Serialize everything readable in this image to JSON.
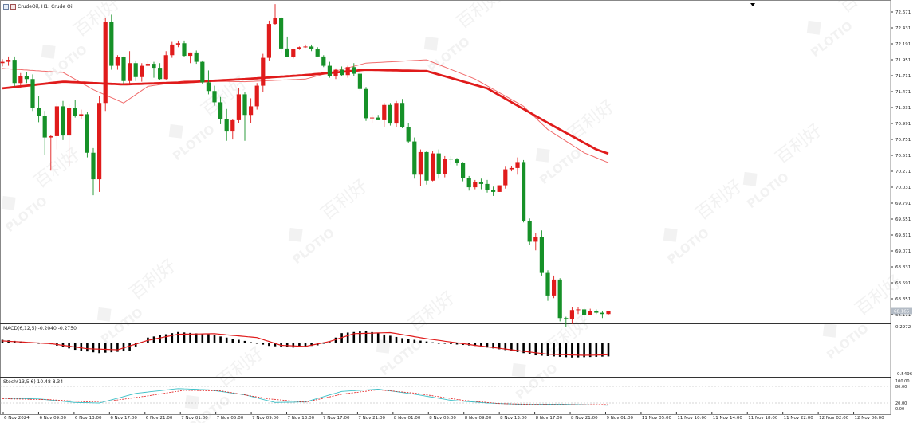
{
  "window": {
    "title": "CrudeOil, H1:  Crude Oil"
  },
  "colors": {
    "up": "#e01b1b",
    "down": "#169128",
    "ma_slow": "#e01b1b",
    "ma_fast": "#f06a6a",
    "macd_hist": "#000000",
    "macd_signal": "#e01b1b",
    "stoch_main": "#3bbfc6",
    "stoch_signal": "#e01b1b",
    "grid": "#000000"
  },
  "watermark": {
    "brand": "PLOTIO",
    "chinese": "百利好"
  },
  "chart_data": [
    {
      "type": "candlestick",
      "title": "CrudeOil, H1:  Crude Oil",
      "ylim": [
        67.991,
        72.791
      ],
      "y_ticks": [
        "72.671",
        "72.431",
        "72.191",
        "71.951",
        "71.711",
        "71.471",
        "71.231",
        "70.991",
        "70.751",
        "70.511",
        "70.271",
        "70.031",
        "69.791",
        "69.551",
        "69.311",
        "69.071",
        "68.831",
        "68.591",
        "68.351",
        "68.111"
      ],
      "current_price": "68.165",
      "x_tick_labels": [
        "6 Nov 2024",
        "6 Nov 09:00",
        "6 Nov 13:00",
        "6 Nov 17:00",
        "6 Nov 21:00",
        "7 Nov 01:00",
        "7 Nov 05:00",
        "7 Nov 09:00",
        "7 Nov 13:00",
        "7 Nov 17:00",
        "7 Nov 21:00",
        "8 Nov 01:00",
        "8 Nov 05:00",
        "8 Nov 09:00",
        "8 Nov 13:00",
        "8 Nov 17:00",
        "8 Nov 21:00",
        "9 Nov 01:00",
        "11 Nov 05:00",
        "11 Nov 10:00",
        "11 Nov 14:00",
        "11 Nov 18:00",
        "11 Nov 22:00",
        "12 Nov 02:00",
        "12 Nov 06:00"
      ],
      "candles": [
        [
          71.9,
          71.96,
          71.85,
          71.92
        ],
        [
          71.92,
          72.0,
          71.86,
          71.95
        ],
        [
          71.95,
          72.0,
          71.55,
          71.6
        ],
        [
          71.6,
          71.75,
          71.52,
          71.7
        ],
        [
          71.7,
          71.76,
          71.6,
          71.66
        ],
        [
          71.66,
          71.73,
          71.18,
          71.22
        ],
        [
          71.22,
          71.4,
          71.01,
          71.1
        ],
        [
          71.1,
          71.18,
          70.52,
          70.78
        ],
        [
          70.78,
          70.82,
          70.28,
          70.8
        ],
        [
          70.8,
          71.3,
          70.6,
          71.25
        ],
        [
          71.25,
          71.33,
          70.74,
          70.81
        ],
        [
          70.81,
          71.28,
          70.35,
          71.22
        ],
        [
          71.22,
          71.34,
          71.08,
          71.11
        ],
        [
          71.11,
          71.2,
          71.06,
          71.13
        ],
        [
          71.13,
          71.16,
          70.48,
          70.55
        ],
        [
          70.55,
          70.62,
          69.91,
          70.15
        ],
        [
          70.15,
          71.4,
          69.96,
          71.3
        ],
        [
          71.3,
          72.58,
          71.18,
          72.52
        ],
        [
          72.52,
          72.63,
          71.8,
          71.86
        ],
        [
          71.86,
          72.02,
          71.8,
          71.99
        ],
        [
          71.99,
          72.0,
          71.58,
          71.63
        ],
        [
          71.63,
          72.08,
          71.58,
          71.9
        ],
        [
          71.9,
          71.94,
          71.63,
          71.69
        ],
        [
          71.69,
          71.9,
          71.62,
          71.86
        ],
        [
          71.86,
          71.93,
          71.85,
          71.89
        ],
        [
          71.89,
          71.92,
          71.68,
          71.83
        ],
        [
          71.83,
          71.9,
          71.64,
          71.66
        ],
        [
          71.66,
          72.08,
          71.64,
          72.02
        ],
        [
          72.02,
          72.22,
          71.98,
          72.18
        ],
        [
          72.18,
          72.24,
          72.14,
          72.2
        ],
        [
          72.2,
          72.24,
          71.99,
          72.01
        ],
        [
          72.01,
          72.06,
          71.9,
          72.06
        ],
        [
          72.06,
          72.09,
          71.89,
          71.92
        ],
        [
          71.92,
          71.94,
          71.59,
          71.61
        ],
        [
          71.61,
          71.79,
          71.43,
          71.48
        ],
        [
          71.48,
          71.56,
          71.26,
          71.31
        ],
        [
          71.31,
          71.39,
          70.98,
          71.06
        ],
        [
          71.06,
          71.21,
          70.73,
          70.87
        ],
        [
          70.87,
          71.06,
          70.75,
          71.04
        ],
        [
          71.04,
          71.52,
          71.0,
          71.43
        ],
        [
          71.43,
          71.46,
          70.73,
          71.12
        ],
        [
          71.12,
          71.37,
          71.0,
          71.25
        ],
        [
          71.25,
          71.6,
          71.2,
          71.56
        ],
        [
          71.56,
          72.04,
          71.47,
          71.98
        ],
        [
          71.98,
          72.54,
          71.94,
          72.49
        ],
        [
          72.49,
          72.79,
          72.47,
          72.58
        ],
        [
          72.58,
          72.6,
          72.06,
          72.12
        ],
        [
          72.12,
          72.3,
          72.02,
          71.99
        ],
        [
          71.99,
          72.12,
          71.97,
          72.11
        ],
        [
          72.11,
          72.15,
          72.1,
          72.14
        ],
        [
          72.14,
          72.18,
          72.13,
          72.15
        ],
        [
          72.15,
          72.18,
          72.08,
          72.11
        ],
        [
          72.11,
          72.14,
          72.0,
          72.0
        ],
        [
          72.0,
          72.02,
          71.84,
          71.86
        ],
        [
          71.86,
          71.92,
          71.68,
          71.7
        ],
        [
          71.7,
          71.82,
          71.66,
          71.8
        ],
        [
          71.8,
          71.85,
          71.7,
          71.72
        ],
        [
          71.72,
          71.86,
          71.68,
          71.84
        ],
        [
          71.84,
          71.9,
          71.71,
          71.74
        ],
        [
          71.74,
          71.8,
          71.49,
          71.51
        ],
        [
          71.51,
          71.54,
          71.03,
          71.07
        ],
        [
          71.07,
          71.12,
          71.0,
          71.08
        ],
        [
          71.08,
          71.12,
          71.04,
          71.04
        ],
        [
          71.04,
          71.3,
          70.94,
          71.27
        ],
        [
          71.27,
          71.3,
          70.96,
          70.99
        ],
        [
          70.99,
          71.33,
          70.94,
          71.3
        ],
        [
          71.3,
          71.36,
          70.92,
          70.94
        ],
        [
          70.94,
          71.0,
          70.7,
          70.72
        ],
        [
          70.72,
          70.78,
          70.16,
          70.22
        ],
        [
          70.22,
          70.6,
          70.05,
          70.56
        ],
        [
          70.56,
          70.58,
          70.07,
          70.13
        ],
        [
          70.13,
          70.58,
          70.12,
          70.54
        ],
        [
          70.54,
          70.6,
          70.16,
          70.23
        ],
        [
          70.23,
          70.5,
          70.18,
          70.46
        ],
        [
          70.46,
          70.5,
          70.37,
          70.45
        ],
        [
          70.45,
          70.47,
          70.36,
          70.4
        ],
        [
          70.4,
          70.41,
          70.12,
          70.17
        ],
        [
          70.17,
          70.2,
          69.98,
          70.03
        ],
        [
          70.03,
          70.14,
          70.0,
          70.11
        ],
        [
          70.11,
          70.16,
          70.0,
          70.08
        ],
        [
          70.08,
          70.14,
          69.95,
          69.99
        ],
        [
          69.99,
          70.04,
          69.9,
          69.96
        ],
        [
          69.96,
          70.06,
          69.96,
          70.06
        ],
        [
          70.06,
          70.34,
          70.01,
          70.3
        ],
        [
          70.3,
          70.35,
          70.27,
          70.32
        ],
        [
          70.32,
          70.48,
          70.22,
          70.41
        ],
        [
          70.41,
          70.44,
          69.5,
          69.52
        ],
        [
          69.52,
          69.56,
          69.16,
          69.21
        ],
        [
          69.21,
          69.34,
          69.08,
          69.28
        ],
        [
          69.28,
          69.38,
          68.7,
          68.74
        ],
        [
          68.74,
          68.78,
          68.32,
          68.4
        ],
        [
          68.4,
          68.7,
          68.36,
          68.64
        ],
        [
          68.64,
          68.66,
          68.01,
          68.06
        ],
        [
          68.06,
          68.08,
          67.93,
          68.04
        ],
        [
          68.04,
          68.23,
          67.97,
          68.18
        ],
        [
          68.18,
          68.22,
          68.12,
          68.19
        ],
        [
          68.19,
          68.21,
          67.94,
          68.11
        ],
        [
          68.11,
          68.2,
          68.1,
          68.17
        ],
        [
          68.17,
          68.19,
          68.12,
          68.14
        ],
        [
          68.14,
          68.16,
          68.06,
          68.12
        ],
        [
          68.12,
          68.17,
          68.1,
          68.16
        ]
      ],
      "ma_slow_points": [
        [
          0,
          71.52
        ],
        [
          10,
          71.62
        ],
        [
          20,
          71.58
        ],
        [
          30,
          71.61
        ],
        [
          40,
          71.66
        ],
        [
          50,
          71.72
        ],
        [
          60,
          71.8
        ],
        [
          70,
          71.78
        ],
        [
          80,
          71.52
        ],
        [
          90,
          71.0
        ],
        [
          98,
          70.6
        ],
        [
          108,
          70.28
        ],
        [
          118,
          69.95
        ],
        [
          124,
          69.69
        ]
      ],
      "ma_fast_points": [
        [
          0,
          71.82
        ],
        [
          10,
          71.76
        ],
        [
          15,
          71.5
        ],
        [
          20,
          71.3
        ],
        [
          24,
          71.55
        ],
        [
          30,
          71.63
        ],
        [
          40,
          71.62
        ],
        [
          50,
          71.66
        ],
        [
          60,
          71.9
        ],
        [
          70,
          71.95
        ],
        [
          78,
          71.66
        ],
        [
          86,
          71.25
        ],
        [
          90,
          70.9
        ],
        [
          96,
          70.55
        ],
        [
          104,
          70.25
        ],
        [
          110,
          69.85
        ],
        [
          116,
          69.3
        ],
        [
          121,
          68.92
        ],
        [
          124,
          68.77
        ]
      ]
    },
    {
      "type": "bar",
      "title": "MACD(6,12,5) -0.2040 -0.2750",
      "ylim": [
        -0.5496,
        0.2972
      ],
      "y_ticks": [
        "0.2972",
        "-0.5496"
      ],
      "histogram_points": [
        [
          0,
          0.06
        ],
        [
          8,
          -0.02
        ],
        [
          12,
          -0.12
        ],
        [
          16,
          -0.18
        ],
        [
          21,
          -0.14
        ],
        [
          24,
          0.1
        ],
        [
          29,
          0.2
        ],
        [
          34,
          0.16
        ],
        [
          40,
          0.04
        ],
        [
          44,
          -0.05
        ],
        [
          48,
          -0.08
        ],
        [
          52,
          -0.04
        ],
        [
          54,
          0.02
        ],
        [
          56,
          0.18
        ],
        [
          60,
          0.22
        ],
        [
          66,
          0.09
        ],
        [
          72,
          0.0
        ],
        [
          78,
          -0.05
        ],
        [
          84,
          -0.14
        ],
        [
          88,
          -0.22
        ],
        [
          94,
          -0.26
        ],
        [
          100,
          -0.24
        ],
        [
          104,
          -0.22
        ],
        [
          106,
          -0.13
        ],
        [
          110,
          -0.3
        ],
        [
          114,
          -0.42
        ],
        [
          117,
          -0.45
        ],
        [
          120,
          -0.32
        ],
        [
          124,
          -0.2
        ]
      ],
      "signal_points": [
        [
          0,
          0.04
        ],
        [
          8,
          -0.01
        ],
        [
          14,
          -0.1
        ],
        [
          19,
          -0.12
        ],
        [
          24,
          0.05
        ],
        [
          29,
          0.16
        ],
        [
          35,
          0.17
        ],
        [
          42,
          0.1
        ],
        [
          46,
          -0.04
        ],
        [
          50,
          -0.06
        ],
        [
          54,
          0.03
        ],
        [
          58,
          0.17
        ],
        [
          64,
          0.19
        ],
        [
          70,
          0.08
        ],
        [
          78,
          -0.04
        ],
        [
          84,
          -0.12
        ],
        [
          90,
          -0.2
        ],
        [
          96,
          -0.22
        ],
        [
          100,
          -0.21
        ],
        [
          106,
          -0.16
        ],
        [
          112,
          -0.3
        ],
        [
          117,
          -0.41
        ],
        [
          121,
          -0.36
        ],
        [
          124,
          -0.27
        ]
      ]
    },
    {
      "type": "line",
      "title": "Stoch(13,5,6) 10.48 8.34",
      "ylim": [
        0,
        100
      ],
      "y_ticks": [
        "100.00",
        "80.00",
        "20.00",
        "0.00"
      ],
      "series": [
        {
          "points": [
            [
              0,
              38
            ],
            [
              6,
              35
            ],
            [
              12,
              22
            ],
            [
              16,
              20
            ],
            [
              22,
              55
            ],
            [
              29,
              72
            ],
            [
              34,
              68
            ],
            [
              40,
              50
            ],
            [
              45,
              22
            ],
            [
              50,
              24
            ],
            [
              56,
              62
            ],
            [
              62,
              70
            ],
            [
              68,
              52
            ],
            [
              74,
              30
            ],
            [
              80,
              20
            ],
            [
              86,
              15
            ],
            [
              92,
              16
            ],
            [
              100,
              12
            ],
            [
              104,
              18
            ],
            [
              108,
              20
            ],
            [
              112,
              10
            ],
            [
              118,
              5
            ],
            [
              124,
              10
            ]
          ]
        },
        {
          "points": [
            [
              0,
              36
            ],
            [
              8,
              32
            ],
            [
              14,
              24
            ],
            [
              18,
              28
            ],
            [
              24,
              46
            ],
            [
              30,
              66
            ],
            [
              36,
              64
            ],
            [
              44,
              35
            ],
            [
              50,
              23
            ],
            [
              56,
              52
            ],
            [
              62,
              68
            ],
            [
              68,
              56
            ],
            [
              76,
              30
            ],
            [
              82,
              18
            ],
            [
              88,
              15
            ],
            [
              96,
              14
            ],
            [
              102,
              15
            ],
            [
              108,
              18
            ],
            [
              114,
              10
            ],
            [
              120,
              6
            ],
            [
              124,
              8
            ]
          ]
        }
      ]
    }
  ]
}
